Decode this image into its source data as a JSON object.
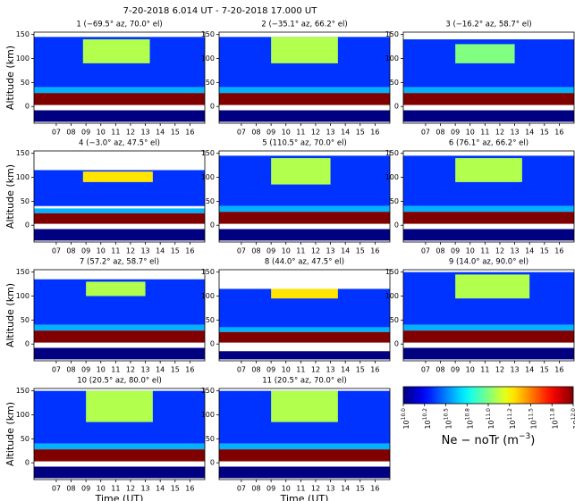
{
  "chart_data": {
    "type": "heatmap",
    "title": "7-20-2018 6.014 UT - 7-20-2018 17.000 UT",
    "xlabel": "Time (UT)",
    "ylabel": "Altitude (km)",
    "xlim": [
      5.5,
      17.0
    ],
    "xticks": [
      {
        "value": 7,
        "label": "07"
      },
      {
        "value": 8,
        "label": "08"
      },
      {
        "value": 9,
        "label": "09"
      },
      10,
      11,
      12,
      13,
      14,
      15,
      16
    ],
    "ylim": [
      -35,
      155
    ],
    "yticks": [
      0,
      50,
      100,
      150
    ],
    "colorbar": {
      "lim": [
        10.0,
        12.0
      ],
      "label": "Ne − noTr (m",
      "label_exponent": "−3",
      "label_end": ")",
      "ticks": [
        {
          "value": 10.0,
          "label": "10",
          "exponent": "10.0"
        },
        {
          "value": 10.25,
          "label": "10",
          "exponent": "10.2"
        },
        {
          "value": 10.5,
          "label": "10",
          "exponent": "10.5"
        },
        {
          "value": 10.75,
          "label": "10",
          "exponent": "10.8"
        },
        {
          "value": 11.0,
          "label": "10",
          "exponent": "11.0"
        },
        {
          "value": 11.25,
          "label": "10",
          "exponent": "11.2"
        },
        {
          "value": 11.5,
          "label": "10",
          "exponent": "11.5"
        },
        {
          "value": 11.75,
          "label": "10",
          "exponent": "11.8"
        },
        {
          "value": 12.0,
          "label": "10",
          "exponent": "12.0"
        }
      ]
    },
    "panels": [
      {
        "title": "1 (−69.5° az, 70.0° el)",
        "regions": [
          [
            5.5,
            17,
            40,
            145,
            10.35
          ],
          [
            8.8,
            13.3,
            90,
            140,
            11.1
          ],
          [
            5.5,
            17,
            28,
            40,
            10.6
          ],
          [
            5.5,
            17,
            3,
            28,
            12.0
          ],
          [
            5.5,
            17,
            -32,
            -8,
            10.0
          ]
        ]
      },
      {
        "title": "2 (−35.1° az, 66.2° el)",
        "regions": [
          [
            5.5,
            17,
            40,
            145,
            10.35
          ],
          [
            9,
            13.5,
            90,
            145,
            11.1
          ],
          [
            5.5,
            17,
            28,
            40,
            10.6
          ],
          [
            5.5,
            17,
            3,
            28,
            12.0
          ],
          [
            5.5,
            17,
            -32,
            -8,
            10.0
          ]
        ]
      },
      {
        "title": "3 (−16.2° az, 58.7° el)",
        "regions": [
          [
            5.5,
            17,
            40,
            140,
            10.35
          ],
          [
            9,
            13,
            90,
            130,
            11.0
          ],
          [
            5.5,
            17,
            28,
            40,
            10.6
          ],
          [
            5.5,
            17,
            3,
            28,
            12.0
          ],
          [
            5.5,
            17,
            -32,
            -8,
            10.0
          ]
        ]
      },
      {
        "title": "4 (−3.0° az, 47.5° el)",
        "regions": [
          [
            5.5,
            17,
            40,
            115,
            10.35
          ],
          [
            8.8,
            13.5,
            90,
            112,
            11.3
          ],
          [
            5.5,
            17,
            25,
            35,
            10.6
          ],
          [
            5.5,
            17,
            3,
            25,
            12.0
          ],
          [
            5.5,
            17,
            -32,
            -8,
            10.0
          ]
        ]
      },
      {
        "title": "5 (110.5° az, 70.0° el)",
        "regions": [
          [
            5.5,
            17,
            40,
            145,
            10.35
          ],
          [
            9,
            13,
            85,
            140,
            11.1
          ],
          [
            5.5,
            17,
            28,
            40,
            10.6
          ],
          [
            5.5,
            17,
            3,
            28,
            12.0
          ],
          [
            5.5,
            17,
            -32,
            -8,
            10.0
          ]
        ]
      },
      {
        "title": "6 (76.1° az, 66.2° el)",
        "regions": [
          [
            5.5,
            17,
            40,
            145,
            10.35
          ],
          [
            9,
            13.5,
            90,
            140,
            11.1
          ],
          [
            5.5,
            17,
            28,
            40,
            10.6
          ],
          [
            5.5,
            17,
            3,
            28,
            12.0
          ],
          [
            5.5,
            17,
            -32,
            -8,
            10.0
          ]
        ]
      },
      {
        "title": "7 (57.2° az, 58.7° el)",
        "regions": [
          [
            5.5,
            17,
            40,
            135,
            10.35
          ],
          [
            9,
            13,
            100,
            130,
            11.1
          ],
          [
            5.5,
            17,
            28,
            40,
            10.6
          ],
          [
            5.5,
            17,
            3,
            28,
            12.0
          ],
          [
            5.5,
            17,
            -32,
            -8,
            10.0
          ]
        ]
      },
      {
        "title": "8 (44.0° az, 47.5° el)",
        "regions": [
          [
            5.5,
            17,
            35,
            115,
            10.35
          ],
          [
            9,
            13.5,
            95,
            115,
            11.3
          ],
          [
            5.5,
            17,
            25,
            35,
            10.6
          ],
          [
            5.5,
            17,
            3,
            25,
            12.0
          ],
          [
            5.5,
            17,
            -32,
            -15,
            10.0
          ]
        ]
      },
      {
        "title": "9 (14.0° az, 90.0° el)",
        "regions": [
          [
            5.5,
            17,
            40,
            150,
            10.35
          ],
          [
            9,
            14,
            95,
            145,
            11.1
          ],
          [
            5.5,
            17,
            28,
            40,
            10.6
          ],
          [
            5.5,
            17,
            3,
            28,
            12.0
          ],
          [
            5.5,
            17,
            -32,
            -8,
            10.0
          ]
        ]
      },
      {
        "title": "10 (20.5° az, 80.0° el)",
        "regions": [
          [
            5.5,
            17,
            40,
            150,
            10.35
          ],
          [
            9,
            13.5,
            85,
            150,
            11.1
          ],
          [
            5.5,
            17,
            28,
            40,
            10.6
          ],
          [
            5.5,
            17,
            3,
            28,
            12.0
          ],
          [
            5.5,
            17,
            -32,
            -8,
            10.0
          ]
        ]
      },
      {
        "title": "11 (20.5° az, 70.0° el)",
        "regions": [
          [
            5.5,
            17,
            40,
            150,
            10.35
          ],
          [
            9,
            13.5,
            85,
            150,
            11.1
          ],
          [
            5.5,
            17,
            28,
            40,
            10.6
          ],
          [
            5.5,
            17,
            3,
            28,
            12.0
          ],
          [
            5.5,
            17,
            -32,
            -8,
            10.0
          ]
        ]
      }
    ]
  }
}
